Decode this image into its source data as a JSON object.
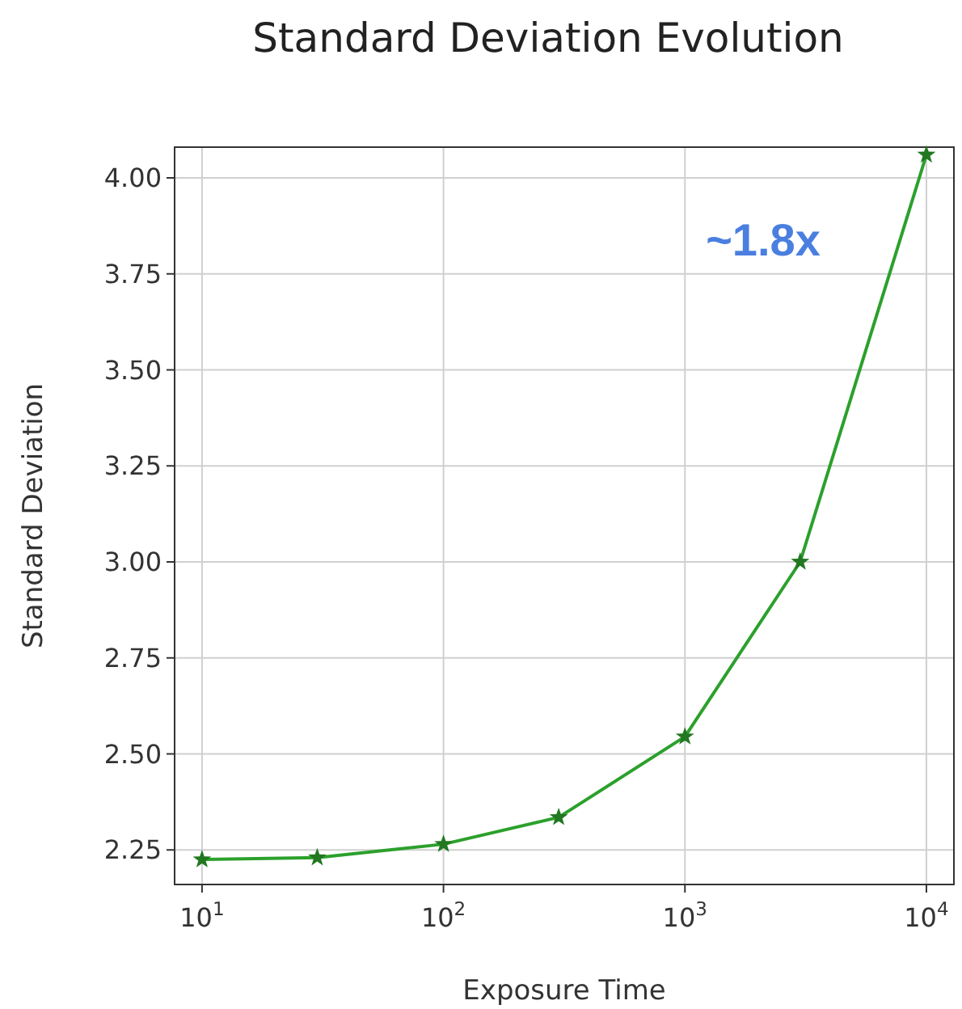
{
  "chart_data": {
    "type": "line",
    "title": "Standard Deviation Evolution",
    "xlabel": "Exposure Time",
    "ylabel": "Standard Deviation",
    "x": [
      10,
      30,
      100,
      300,
      1000,
      3000,
      10000
    ],
    "series": [
      {
        "color": "#2ca02c",
        "values": [
          2.225,
          2.23,
          2.265,
          2.335,
          2.545,
          3.0,
          4.06
        ]
      }
    ],
    "log": "x",
    "xlim": [
      7.7,
      13000
    ],
    "ylim": [
      2.16,
      4.08
    ],
    "xticks": [
      {
        "value": 10,
        "label": "10$^{1}$"
      },
      {
        "value": 100,
        "label": "10$^{2}$"
      },
      {
        "value": 1000,
        "label": "10$^{3}$"
      },
      {
        "value": 10000,
        "label": "10$^{4}$"
      }
    ],
    "yticks": [
      {
        "value": 2.25,
        "label": "2.25"
      },
      {
        "value": 2.5,
        "label": "2.50"
      },
      {
        "value": 2.75,
        "label": "2.75"
      },
      {
        "value": 3.0,
        "label": "3.00"
      },
      {
        "value": 3.25,
        "label": "3.25"
      },
      {
        "value": 3.5,
        "label": "3.50"
      },
      {
        "value": 3.75,
        "label": "3.75"
      },
      {
        "value": 4.0,
        "label": "4.00"
      }
    ],
    "grid": true,
    "marker": "star",
    "line_style": "solid",
    "annotations": [
      "~1.8x"
    ]
  }
}
